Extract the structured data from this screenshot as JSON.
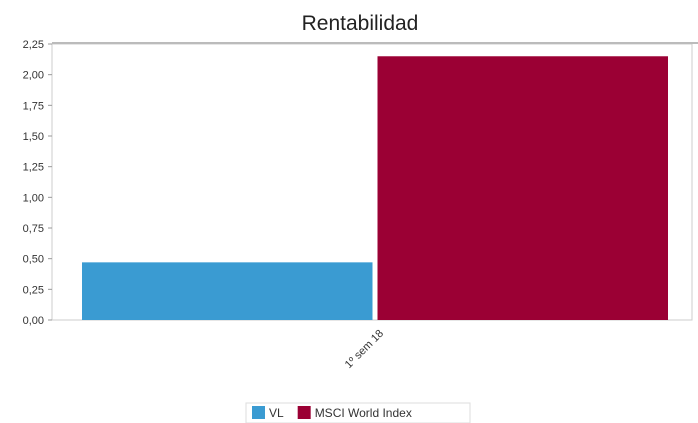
{
  "chart_data": {
    "type": "bar",
    "title": "Rentabilidad",
    "categories": [
      "1º sem 18"
    ],
    "series": [
      {
        "name": "VL",
        "values": [
          0.47
        ],
        "color": "#3a9bd2"
      },
      {
        "name": "MSCI World Index",
        "values": [
          2.15
        ],
        "color": "#9b0034"
      }
    ],
    "ylim": [
      0,
      2.25
    ],
    "yticks": [
      "0,00",
      "0,25",
      "0,50",
      "0,75",
      "1,00",
      "1,25",
      "1,50",
      "1,75",
      "2,00",
      "2,25"
    ],
    "ytick_values": [
      0,
      0.25,
      0.5,
      0.75,
      1.0,
      1.25,
      1.5,
      1.75,
      2.0,
      2.25
    ],
    "grid": false,
    "legend_position": "bottom"
  }
}
